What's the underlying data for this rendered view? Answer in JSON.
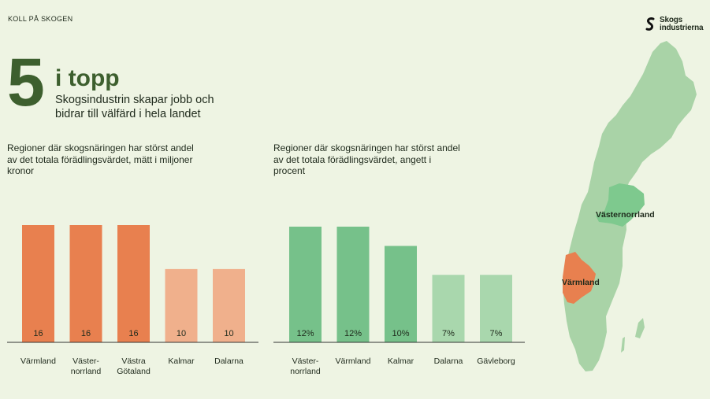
{
  "header": {
    "kicker": "KOLL PÅ SKOGEN",
    "logo_line1": "Skogs",
    "logo_line2": "industrierna"
  },
  "hero": {
    "number": "5",
    "title": "i topp",
    "subtitle": "Skogsindustrin skapar jobb och bidrar till välfärd i hela landet"
  },
  "left_description": "Regioner där skogsnäringen har störst andel av det totala förädlingsvärdet, mätt i miljoner kronor",
  "right_description": "Regioner där skogsnäringen har störst andel av det totala förädlingsvärdet, angett i procent",
  "map_labels": {
    "region_north": "Västernorrland",
    "region_west": "Värmland"
  },
  "colors": {
    "orange_dark": "#e8804f",
    "orange_light": "#f0b08c",
    "green_dark": "#76c18a",
    "green_light": "#a9d7ad",
    "map_land": "#a9d3a7",
    "map_highlight_north": "#7ec98e",
    "map_highlight_west": "#e8804f",
    "title_green": "#3d5f2e"
  },
  "chart_data": [
    {
      "type": "bar",
      "categories": [
        "Värmland",
        "Väster-\nnorrland",
        "Västra\nGötaland",
        "Kalmar",
        "Dalarna"
      ],
      "values": [
        16,
        16,
        16,
        10,
        10
      ],
      "data_labels": [
        "16",
        "16",
        "16",
        "10",
        "10"
      ],
      "bar_colors": [
        "#e8804f",
        "#e8804f",
        "#e8804f",
        "#f0b08c",
        "#f0b08c"
      ],
      "ylim": [
        0,
        16
      ]
    },
    {
      "type": "bar",
      "categories": [
        "Väster-\nnorrland",
        "Värmland",
        "Kalmar",
        "Dalarna",
        "Gävleborg"
      ],
      "values": [
        12,
        12,
        10,
        7,
        7
      ],
      "data_labels": [
        "12%",
        "12%",
        "10%",
        "7%",
        "7%"
      ],
      "bar_colors": [
        "#76c18a",
        "#76c18a",
        "#76c18a",
        "#a9d7ad",
        "#a9d7ad"
      ],
      "ylim": [
        0,
        12
      ]
    }
  ]
}
